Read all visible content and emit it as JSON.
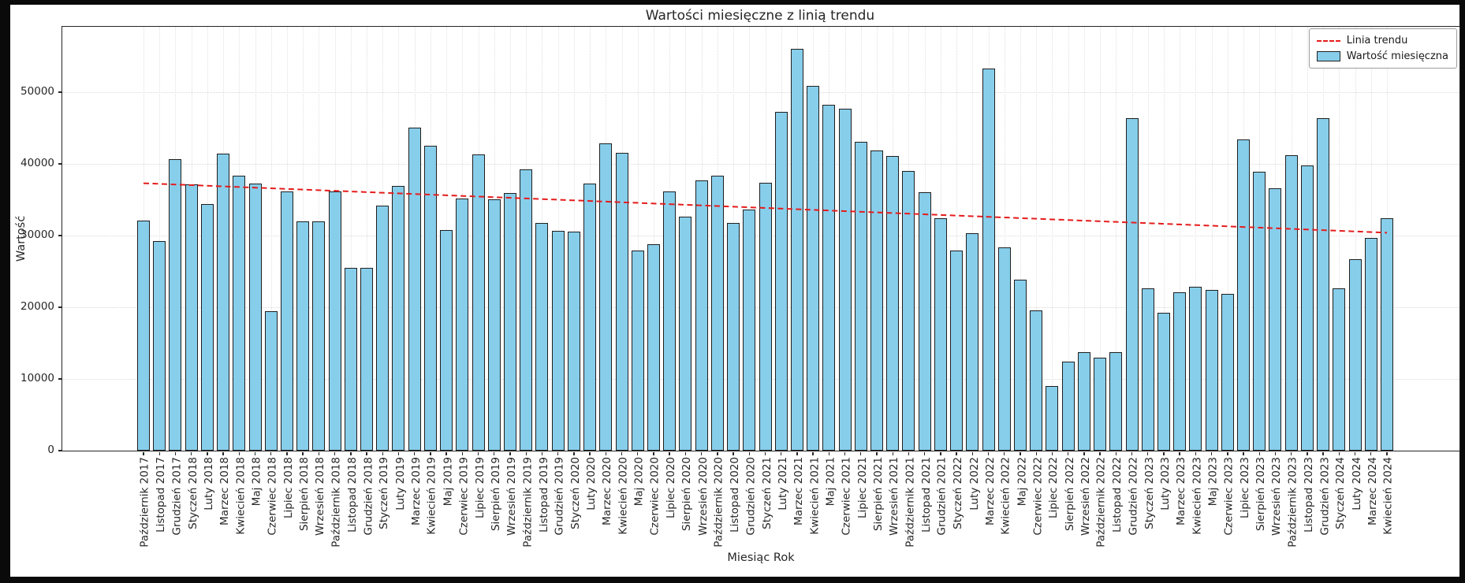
{
  "title": "Wartości miesięczne z linią trendu",
  "axes": {
    "xlabel": "Miesiąc Rok",
    "ylabel": "Wartość",
    "yticks": [
      0,
      10000,
      20000,
      30000,
      40000,
      50000
    ],
    "ylim": [
      0,
      59120
    ]
  },
  "legend": {
    "position": "top-right",
    "items": [
      {
        "label": "Linia trendu",
        "type": "dashed-line",
        "color": "#e51c1c"
      },
      {
        "label": "Wartość miesięczna",
        "type": "patch",
        "color": "#87ceeb"
      }
    ]
  },
  "chart_data": {
    "type": "bar",
    "title": "Wartości miesięczne z linią trendu",
    "xlabel": "Miesiąc Rok",
    "ylabel": "Wartość",
    "ylim": [
      0,
      59120
    ],
    "grid": "dotted, both axes",
    "bar_color": "#87ceeb",
    "bar_edge_color": "#1f1f1f",
    "categories": [
      "Październik 2017",
      "Listopad 2017",
      "Grudzień 2017",
      "Styczeń 2018",
      "Luty 2018",
      "Marzec 2018",
      "Kwiecień 2018",
      "Maj 2018",
      "Czerwiec 2018",
      "Lipiec 2018",
      "Sierpień 2018",
      "Wrzesień 2018",
      "Październik 2018",
      "Listopad 2018",
      "Grudzień 2018",
      "Styczeń 2019",
      "Luty 2019",
      "Marzec 2019",
      "Kwiecień 2019",
      "Maj 2019",
      "Czerwiec 2019",
      "Lipiec 2019",
      "Sierpień 2019",
      "Wrzesień 2019",
      "Październik 2019",
      "Listopad 2019",
      "Grudzień 2019",
      "Styczeń 2020",
      "Luty 2020",
      "Marzec 2020",
      "Kwiecień 2020",
      "Maj 2020",
      "Czerwiec 2020",
      "Lipiec 2020",
      "Sierpień 2020",
      "Wrzesień 2020",
      "Październik 2020",
      "Listopad 2020",
      "Grudzień 2020",
      "Styczeń 2021",
      "Luty 2021",
      "Marzec 2021",
      "Kwiecień 2021",
      "Maj 2021",
      "Czerwiec 2021",
      "Lipiec 2021",
      "Sierpień 2021",
      "Wrzesień 2021",
      "Październik 2021",
      "Listopad 2021",
      "Grudzień 2021",
      "Styczeń 2022",
      "Luty 2022",
      "Marzec 2022",
      "Kwiecień 2022",
      "Maj 2022",
      "Czerwiec 2022",
      "Lipiec 2022",
      "Sierpień 2022",
      "Wrzesień 2022",
      "Październik 2022",
      "Listopad 2022",
      "Grudzień 2022",
      "Styczeń 2023",
      "Luty 2023",
      "Marzec 2023",
      "Kwiecień 2023",
      "Maj 2023",
      "Czerwiec 2023",
      "Lipiec 2023",
      "Sierpień 2023",
      "Wrzesień 2023",
      "Październik 2023",
      "Listopad 2023",
      "Grudzień 2023",
      "Styczeń 2024",
      "Luty 2024",
      "Marzec 2024",
      "Kwiecień 2024"
    ],
    "values": [
      32100,
      29200,
      40700,
      37100,
      34400,
      41400,
      38300,
      37200,
      19500,
      36100,
      32000,
      32000,
      36200,
      25500,
      25500,
      34200,
      36900,
      45000,
      42500,
      30800,
      35200,
      41300,
      35000,
      35900,
      39200,
      31800,
      30700,
      30600,
      37300,
      42900,
      41500,
      27900,
      28800,
      36100,
      32600,
      37700,
      38400,
      31800,
      33600,
      37400,
      47200,
      56000,
      50900,
      48200,
      47700,
      43100,
      41900,
      41100,
      39000,
      36000,
      32400,
      27900,
      30300,
      53300,
      28400,
      23800,
      19600,
      9000,
      12400,
      13700,
      13000,
      13700,
      46400,
      22600,
      19200,
      22100,
      22900,
      22400,
      21900,
      43400,
      38900,
      36600,
      41200,
      39800,
      46400,
      22600,
      26700,
      29700,
      32400
    ],
    "trend": {
      "name": "Linia trendu",
      "style": "dashed",
      "color": "#e51c1c",
      "start_value": 37300,
      "end_value": 30400
    }
  }
}
